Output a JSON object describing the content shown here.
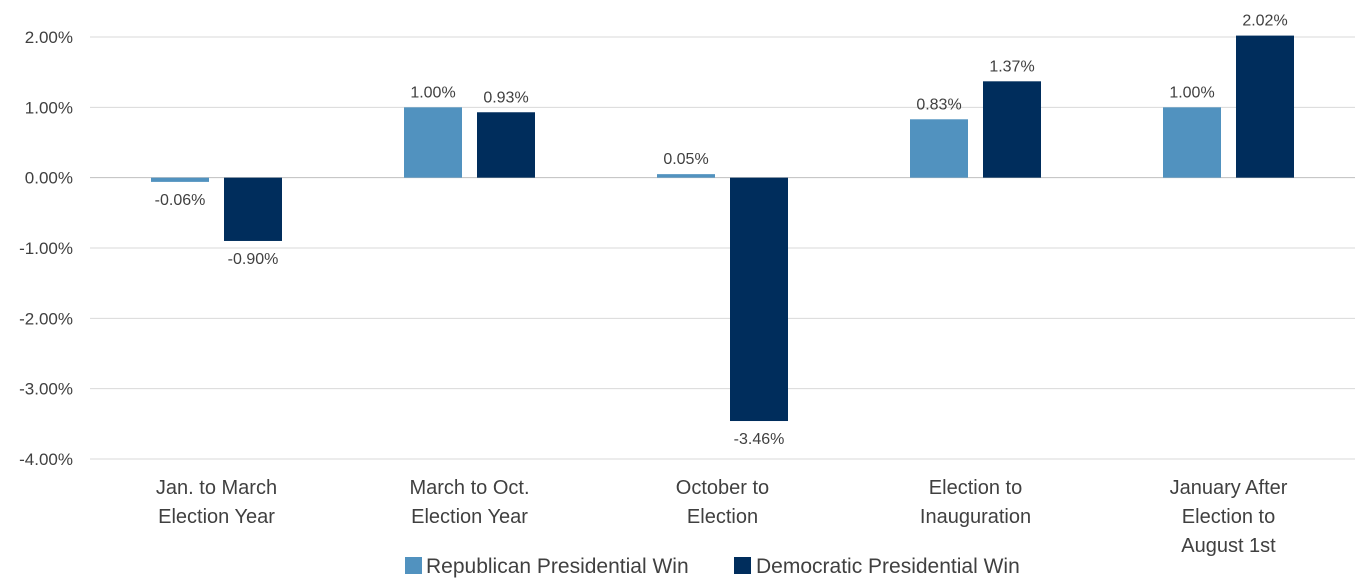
{
  "chart_data": {
    "type": "bar",
    "categories": [
      [
        "Jan. to March",
        "Election Year"
      ],
      [
        "March to Oct.",
        "Election Year"
      ],
      [
        "October to",
        "Election"
      ],
      [
        "Election to",
        "Inauguration"
      ],
      [
        "January After",
        "Election to",
        "August 1st"
      ]
    ],
    "series": [
      {
        "name": "Republican Presidential Win",
        "color": "#5192BF",
        "values": [
          -0.06,
          1.0,
          0.05,
          0.83,
          1.0
        ],
        "labels": [
          "-0.06%",
          "1.00%",
          "0.05%",
          "0.83%",
          "1.00%"
        ]
      },
      {
        "name": "Democratic Presidential Win",
        "color": "#002D5C",
        "values": [
          -0.9,
          0.93,
          -3.46,
          1.37,
          2.02
        ],
        "labels": [
          "-0.90%",
          "0.93%",
          "-3.46%",
          "1.37%",
          "2.02%"
        ]
      }
    ],
    "ylim": [
      -4,
      2
    ],
    "yticks": [
      2,
      1,
      0,
      -1,
      -2,
      -3,
      -4
    ],
    "ytick_labels": [
      "2.00%",
      "1.00%",
      "0.00%",
      "-1.00%",
      "-2.00%",
      "-3.00%",
      "-4.00%"
    ],
    "grid": true,
    "legend_position": "bottom",
    "title": "",
    "xlabel": "",
    "ylabel": ""
  }
}
